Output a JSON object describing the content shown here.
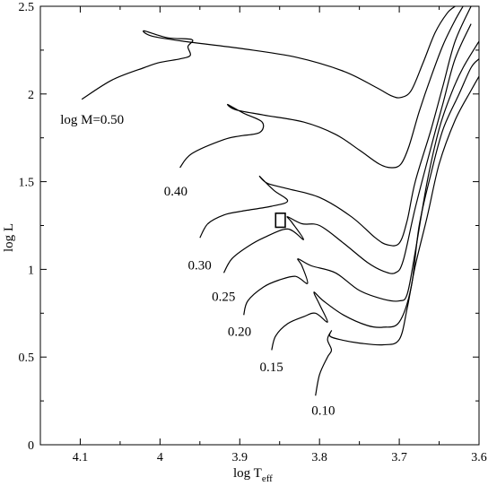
{
  "chart_data": {
    "type": "line",
    "title": "",
    "xlabel_main": "log T",
    "xlabel_sub": "eff",
    "ylabel": "log L",
    "xlim": [
      4.15,
      3.6
    ],
    "ylim": [
      0,
      2.5
    ],
    "x_reversed": true,
    "xticks": [
      4.1,
      4.0,
      3.9,
      3.8,
      3.7,
      3.6
    ],
    "xtick_labels": [
      "4.1",
      "4",
      "3.9",
      "3.8",
      "3.7",
      "3.6"
    ],
    "yticks": [
      0,
      0.5,
      1.0,
      1.5,
      2.0,
      2.5
    ],
    "ytick_labels": [
      "0",
      "0.5",
      "1",
      "1.5",
      "2",
      "2.5"
    ],
    "series": [
      {
        "name": "log M=0.50",
        "x": [
          4.098,
          4.06,
          4.02,
          4.0,
          3.975,
          3.962,
          3.965,
          3.96,
          3.99,
          4.02,
          4.01,
          3.97,
          3.9,
          3.83,
          3.77,
          3.73,
          3.71,
          3.698,
          3.685,
          3.67,
          3.655,
          3.64,
          3.63
        ],
        "y": [
          1.97,
          2.08,
          2.15,
          2.18,
          2.2,
          2.22,
          2.27,
          2.31,
          2.32,
          2.36,
          2.33,
          2.3,
          2.26,
          2.21,
          2.13,
          2.04,
          1.99,
          1.98,
          2.02,
          2.18,
          2.35,
          2.46,
          2.5
        ]
      },
      {
        "name": "0.40",
        "x": [
          3.975,
          3.96,
          3.92,
          3.9,
          3.875,
          3.872,
          3.895,
          3.915,
          3.905,
          3.87,
          3.82,
          3.78,
          3.75,
          3.725,
          3.71,
          3.698,
          3.688,
          3.675,
          3.66,
          3.645,
          3.63,
          3.62
        ],
        "y": [
          1.58,
          1.66,
          1.74,
          1.76,
          1.78,
          1.84,
          1.89,
          1.94,
          1.91,
          1.88,
          1.84,
          1.77,
          1.68,
          1.6,
          1.58,
          1.6,
          1.7,
          1.9,
          2.1,
          2.28,
          2.42,
          2.5
        ]
      },
      {
        "name": "0.30",
        "x": [
          3.95,
          3.94,
          3.92,
          3.9,
          3.86,
          3.84,
          3.857,
          3.875,
          3.865,
          3.84,
          3.8,
          3.76,
          3.73,
          3.715,
          3.7,
          3.69,
          3.68,
          3.66,
          3.645,
          3.63,
          3.61
        ],
        "y": [
          1.18,
          1.26,
          1.31,
          1.33,
          1.36,
          1.39,
          1.45,
          1.53,
          1.49,
          1.46,
          1.41,
          1.3,
          1.18,
          1.14,
          1.15,
          1.28,
          1.5,
          1.8,
          2.05,
          2.3,
          2.5
        ]
      },
      {
        "name": "0.25",
        "x": [
          3.92,
          3.91,
          3.89,
          3.87,
          3.84,
          3.82,
          3.835,
          3.84,
          3.822,
          3.8,
          3.77,
          3.74,
          3.72,
          3.705,
          3.695,
          3.68,
          3.66,
          3.645,
          3.63,
          3.61
        ],
        "y": [
          0.98,
          1.06,
          1.13,
          1.18,
          1.23,
          1.17,
          1.27,
          1.3,
          1.26,
          1.25,
          1.15,
          1.04,
          0.99,
          0.98,
          1.05,
          1.35,
          1.7,
          1.95,
          2.2,
          2.4
        ]
      },
      {
        "name": "0.20",
        "x": [
          3.895,
          3.89,
          3.87,
          3.85,
          3.83,
          3.815,
          3.822,
          3.827,
          3.81,
          3.78,
          3.75,
          3.72,
          3.7,
          3.69,
          3.68,
          3.665,
          3.65,
          3.635,
          3.62,
          3.6
        ],
        "y": [
          0.74,
          0.82,
          0.9,
          0.94,
          0.96,
          0.92,
          1.02,
          1.06,
          1.02,
          0.98,
          0.88,
          0.83,
          0.82,
          0.86,
          1.1,
          1.5,
          1.8,
          2.0,
          2.15,
          2.3
        ]
      },
      {
        "name": "0.15",
        "x": [
          3.86,
          3.855,
          3.84,
          3.82,
          3.805,
          3.79,
          3.8,
          3.807,
          3.795,
          3.77,
          3.74,
          3.72,
          3.7,
          3.685,
          3.675,
          3.66,
          3.645,
          3.625,
          3.61,
          3.6
        ],
        "y": [
          0.54,
          0.62,
          0.69,
          0.73,
          0.75,
          0.7,
          0.8,
          0.87,
          0.82,
          0.74,
          0.68,
          0.67,
          0.7,
          0.9,
          1.25,
          1.55,
          1.8,
          2.0,
          2.15,
          2.2
        ]
      },
      {
        "name": "0.10",
        "x": [
          3.805,
          3.8,
          3.79,
          3.785,
          3.79,
          3.785,
          3.787,
          3.775,
          3.75,
          3.72,
          3.7,
          3.69,
          3.68,
          3.665,
          3.65,
          3.63,
          3.61,
          3.6
        ],
        "y": [
          0.28,
          0.4,
          0.5,
          0.54,
          0.6,
          0.65,
          0.62,
          0.6,
          0.58,
          0.57,
          0.6,
          0.78,
          1.02,
          1.3,
          1.6,
          1.85,
          2.02,
          2.1
        ]
      }
    ],
    "label_placement": [
      {
        "text": "log M=0.50",
        "x": 4.125,
        "y": 1.83
      },
      {
        "text": "0.40",
        "x": 3.995,
        "y": 1.42
      },
      {
        "text": "0.30",
        "x": 3.965,
        "y": 1.0
      },
      {
        "text": "0.25",
        "x": 3.935,
        "y": 0.82
      },
      {
        "text": "0.20",
        "x": 3.915,
        "y": 0.62
      },
      {
        "text": "0.15",
        "x": 3.875,
        "y": 0.42
      },
      {
        "text": "0.10",
        "x": 3.81,
        "y": 0.17
      }
    ],
    "marker_box": {
      "x": [
        3.855,
        3.843
      ],
      "y": [
        1.24,
        1.32
      ]
    },
    "grid": false,
    "legend": "none"
  }
}
